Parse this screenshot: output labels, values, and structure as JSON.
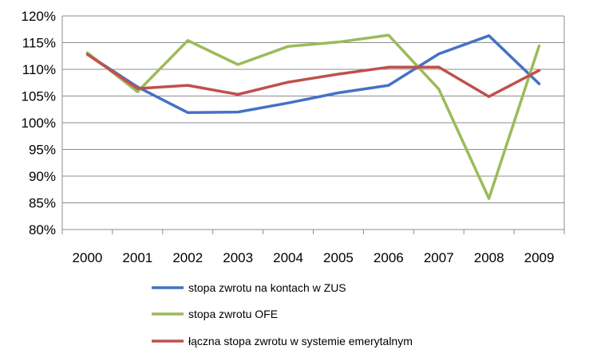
{
  "chart_data": {
    "type": "line",
    "x": [
      "2000",
      "2001",
      "2002",
      "2003",
      "2004",
      "2005",
      "2006",
      "2007",
      "2008",
      "2009"
    ],
    "ylim": [
      80,
      120
    ],
    "y_ticks": [
      "80%",
      "85%",
      "90%",
      "95%",
      "100%",
      "105%",
      "110%",
      "115%",
      "120%"
    ],
    "y_tick_values": [
      80,
      85,
      90,
      95,
      100,
      105,
      110,
      115,
      120
    ],
    "grid": true,
    "legend_position": "bottom",
    "series": [
      {
        "name": "stopa zwrotu na kontach w ZUS",
        "color": "#4472C4",
        "values": [
          112.8,
          106.7,
          101.9,
          102.0,
          103.7,
          105.6,
          107.0,
          112.9,
          116.3,
          107.3
        ]
      },
      {
        "name": "stopa zwrotu OFE",
        "color": "#9BBB59",
        "values": [
          113.1,
          105.8,
          115.4,
          110.9,
          114.3,
          115.1,
          116.4,
          106.3,
          85.8,
          114.4
        ]
      },
      {
        "name": "łączna stopa zwrotu w systemie emerytalnym",
        "color": "#C0504D",
        "values": [
          112.8,
          106.4,
          107.0,
          105.3,
          107.6,
          109.1,
          110.4,
          110.4,
          104.9,
          109.8
        ]
      }
    ]
  }
}
